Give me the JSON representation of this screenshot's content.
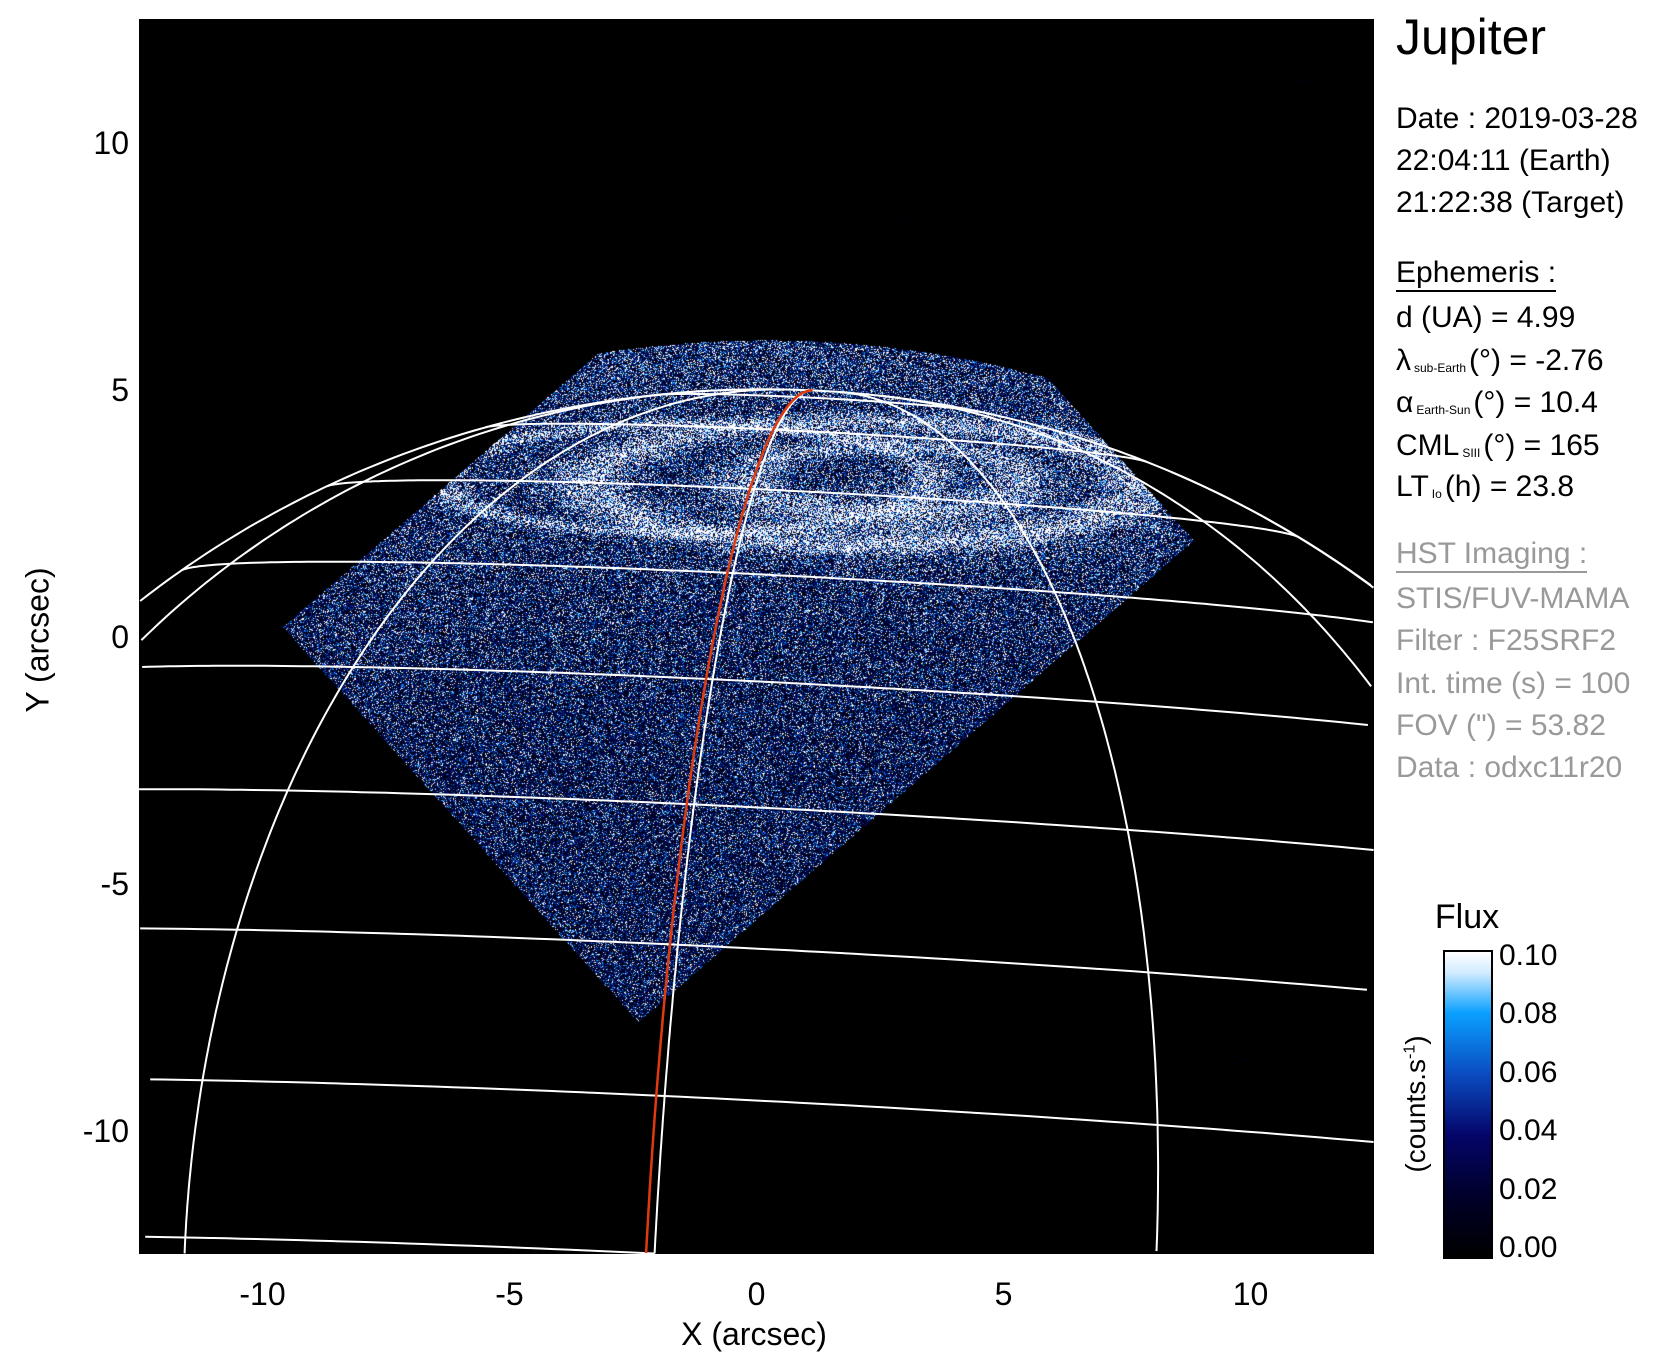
{
  "chart_data": {
    "type": "heatmap",
    "title": "Jupiter",
    "xlabel": "X (arcsec)",
    "ylabel": "Y (arcsec)",
    "xlim": [
      -12.5,
      12.5
    ],
    "ylim": [
      -12.5,
      12.5
    ],
    "x_ticks": [
      "-10",
      "-5",
      "0",
      "5",
      "10"
    ],
    "x_tick_values": [
      -10,
      -5,
      0,
      5,
      10
    ],
    "y_ticks": [
      "10",
      "5",
      "0",
      "-5",
      "-10"
    ],
    "y_tick_values": [
      10,
      5,
      0,
      -5,
      -10
    ],
    "grid": false,
    "overlay": "latitude/longitude grid (white) and meridian (red)",
    "colors": {
      "grid": "#ffffff",
      "meridian": "#e03a10",
      "background": "#000000"
    },
    "colorbar": {
      "title": "Flux",
      "unit_label": "(counts.s",
      "unit_sup": "-1",
      "unit_close": ")",
      "range": [
        0.0,
        0.1
      ],
      "ticks": [
        "0.10",
        "0.08",
        "0.06",
        "0.04",
        "0.02",
        "0.00"
      ],
      "tick_values": [
        0.1,
        0.08,
        0.06,
        0.04,
        0.02,
        0.0
      ],
      "colormap": [
        "#000000",
        "#00002a",
        "#05056a",
        "#0a4cc0",
        "#0aa0ff",
        "#ffffff"
      ]
    }
  },
  "info": {
    "date": "Date : 2019-03-28",
    "time_earth": "22:04:11 (Earth)",
    "time_target": "21:22:38 (Target)",
    "ephemeris_header": "Ephemeris :",
    "distance": "d (UA)    = 4.99",
    "lambda": {
      "symbol": "λ",
      "sub": "sub-Earth",
      "rest": "(°) = -2.76"
    },
    "alpha": {
      "symbol": "α",
      "sub": "Earth-Sun",
      "rest": "(°) = 10.4"
    },
    "cml": {
      "symbol": "CML",
      "sub": "SIII",
      "rest": "(°) = 165"
    },
    "lt": {
      "symbol": "LT",
      "sub": "Io",
      "rest": "(h) = 23.8"
    },
    "hst_header": "HST Imaging :",
    "instrument": "STIS/FUV-MAMA",
    "filter": "Filter : F25SRF2",
    "int_time": "Int. time (s) = 100",
    "fov": "FOV (\") = 53.82",
    "data": "Data : odxc11r20"
  }
}
